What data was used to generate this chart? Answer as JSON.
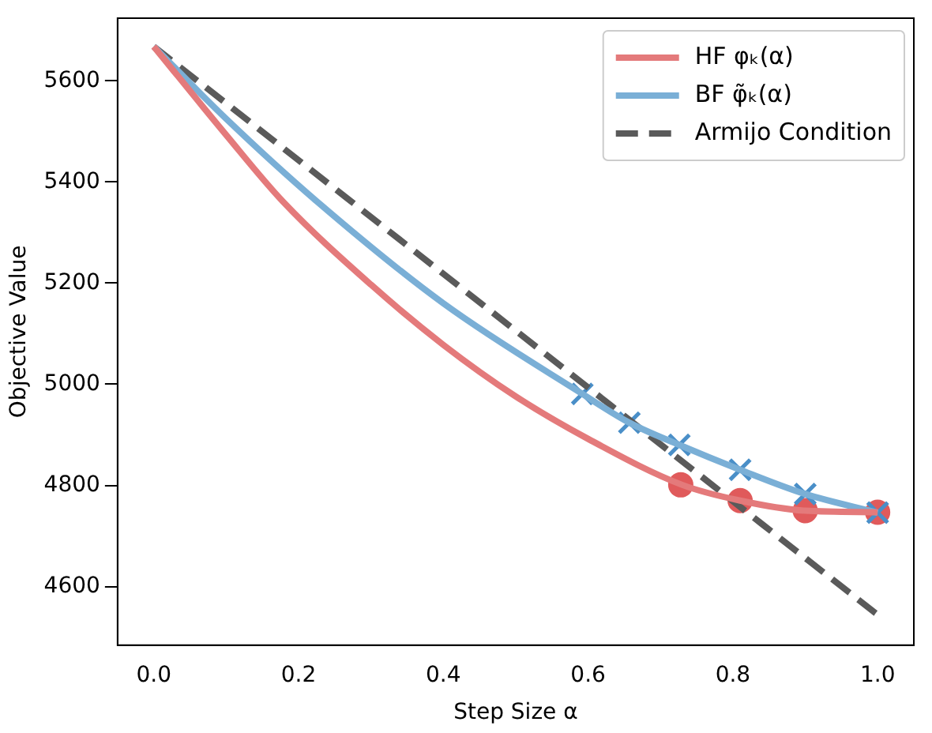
{
  "chart_data": {
    "type": "line",
    "xlabel": "Step Size α",
    "ylabel": "Objective Value",
    "xlim": [
      -0.05,
      1.05
    ],
    "ylim": [
      4484,
      5724
    ],
    "xticks": [
      {
        "value": 0,
        "label": "0.0"
      },
      {
        "value": 0.2,
        "label": "0.2"
      },
      {
        "value": 0.4,
        "label": "0.4"
      },
      {
        "value": 0.6,
        "label": "0.6"
      },
      {
        "value": 0.8,
        "label": "0.8"
      },
      {
        "value": 1,
        "label": "1.0"
      }
    ],
    "yticks": [
      4600,
      4800,
      5000,
      5200,
      5400,
      5600
    ],
    "grid": false,
    "legend": "top right",
    "series": [
      {
        "name": "HF φₖ(α)",
        "type": "line",
        "color": "#e47a7b",
        "line_style": "solid",
        "marker": "none",
        "x": [
          0,
          0.1,
          0.178,
          0.3,
          0.4,
          0.5,
          0.6,
          0.73,
          0.81,
          0.9,
          1.0
        ],
        "values": [
          5668,
          5493,
          5362,
          5197,
          5078,
          4976,
          4892,
          4801,
          4770,
          4750,
          4747
        ]
      },
      {
        "name": "BF φ̃ₖ(α)",
        "type": "line",
        "color": "#7aafd6",
        "line_style": "solid",
        "marker": "none",
        "x": [
          0,
          0.1,
          0.225,
          0.4,
          0.592,
          0.657,
          0.726,
          0.81,
          0.9,
          1.0
        ],
        "values": [
          5668,
          5525,
          5362,
          5160,
          4981,
          4924,
          4880,
          4831,
          4783,
          4746
        ]
      },
      {
        "name": "Armijo Condition",
        "type": "line",
        "color": "#5a5a5a",
        "line_style": "dashed",
        "marker": "none",
        "x": [
          0,
          1
        ],
        "values": [
          5668,
          4544
        ]
      },
      {
        "type": "scatter",
        "color": "#4a8fc8",
        "marker": "cross",
        "x": [
          0.592,
          0.657,
          0.726,
          0.81,
          0.9,
          1.0
        ],
        "values": [
          4981,
          4924,
          4880,
          4831,
          4783,
          4746
        ]
      },
      {
        "type": "scatter",
        "color": "#e05a5b",
        "marker": "circle",
        "x": [
          0.728,
          0.81,
          0.9,
          1.0
        ],
        "values": [
          4801,
          4770,
          4750,
          4747
        ]
      }
    ]
  }
}
